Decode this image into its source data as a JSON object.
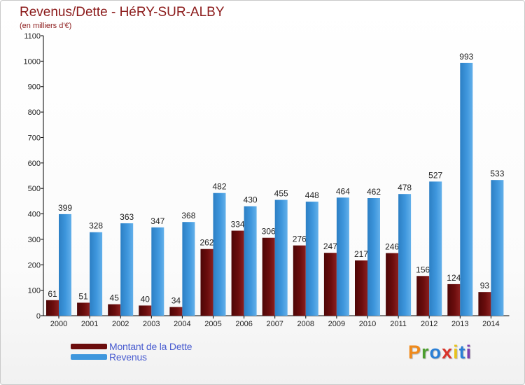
{
  "colors": {
    "debt": "#6b0d0d",
    "revenue": "#3f97dd",
    "title": "#8b1a1a",
    "legend_text": "#4a5dd0",
    "brand": [
      "#f08a1a",
      "#4c9e2f",
      "#2a7fd6",
      "#d9342b",
      "#e8c31a",
      "#2a7fd6",
      "#7a3fb0"
    ]
  },
  "header": {
    "title": "Revenus/Dette - HéRY-SUR-ALBY",
    "subtitle": "(en milliers d'€)"
  },
  "legend": {
    "items": [
      {
        "label": "Montant de la Dette",
        "color": "#6b0d0d"
      },
      {
        "label": "Revenus",
        "color": "#3f97dd"
      }
    ]
  },
  "brand": {
    "letters": [
      "P",
      "r",
      "o",
      "x",
      "i",
      "t",
      "i"
    ]
  },
  "chart_data": {
    "type": "bar",
    "title": "Revenus/Dette - HéRY-SUR-ALBY",
    "subtitle": "(en milliers d'€)",
    "xlabel": "",
    "ylabel": "",
    "ylim": [
      0,
      1100
    ],
    "yticks": [
      0,
      100,
      200,
      300,
      400,
      500,
      600,
      700,
      800,
      900,
      1000,
      1100
    ],
    "grid": false,
    "legend_position": "bottom-left",
    "categories": [
      "2000",
      "2001",
      "2002",
      "2003",
      "2004",
      "2005",
      "2006",
      "2007",
      "2008",
      "2009",
      "2010",
      "2011",
      "2012",
      "2013",
      "2014"
    ],
    "series": [
      {
        "name": "Montant de la Dette",
        "values": [
          61,
          51,
          45,
          40,
          34,
          262,
          334,
          306,
          276,
          247,
          217,
          246,
          156,
          124,
          93
        ]
      },
      {
        "name": "Revenus",
        "values": [
          399,
          328,
          363,
          347,
          368,
          482,
          430,
          455,
          448,
          464,
          462,
          478,
          527,
          993,
          533
        ]
      }
    ]
  }
}
